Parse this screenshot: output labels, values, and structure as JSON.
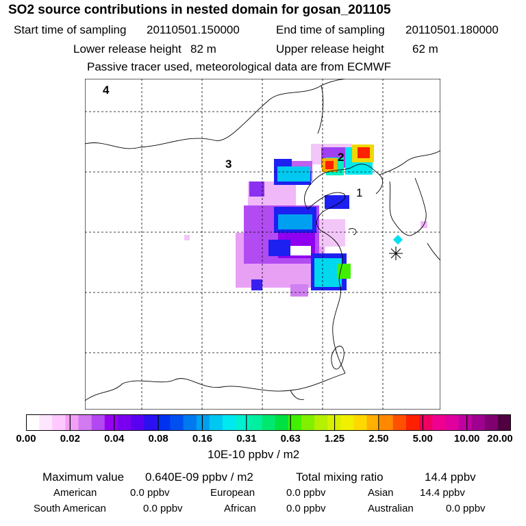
{
  "header": {
    "title": "SO2 source contributions in nested domain for gosan_201105",
    "start_time_label": "Start time of sampling",
    "start_time": "20110501.150000",
    "end_time_label": "End time of sampling",
    "end_time": "20110501.180000",
    "lower_height_label": "Lower release height",
    "lower_height": "82 m",
    "upper_height_label": "Upper release height",
    "upper_height": "62 m",
    "note": "Passive tracer used, meteorological data are from ECMWF"
  },
  "map": {
    "region_labels": [
      "1",
      "2",
      "3",
      "4"
    ],
    "receptor_marker": "asterisk-marker"
  },
  "colorbar": {
    "tick_labels": [
      "0.00",
      "0.02",
      "0.04",
      "0.08",
      "0.16",
      "0.31",
      "0.63",
      "1.25",
      "2.50",
      "5.00",
      "10.00",
      "20.00"
    ],
    "colors": [
      "#ffffff",
      "#ffe6ff",
      "#ffc8ff",
      "#f2a0f5",
      "#d27af0",
      "#b448f0",
      "#9600f0",
      "#7a00f0",
      "#5a00f0",
      "#2c10f0",
      "#0030f0",
      "#0050f0",
      "#0078f0",
      "#00a0f0",
      "#00c8f0",
      "#00e8f0",
      "#00f0d0",
      "#00f0a0",
      "#00e870",
      "#00e040",
      "#40f000",
      "#80f000",
      "#b4f000",
      "#d8f000",
      "#f0f000",
      "#ffd800",
      "#ffb000",
      "#ff8800",
      "#ff5000",
      "#ff2000",
      "#f00060",
      "#f00090",
      "#e000a0",
      "#c000a0",
      "#a00090",
      "#800070",
      "#500040"
    ],
    "unit": "10E-10 ppbv / m2"
  },
  "stats": {
    "max_label": "Maximum value",
    "max_value": "0.640E-09 ppbv / m2",
    "total_label": "Total mixing ratio",
    "total_value": "14.4 ppbv",
    "regions": [
      {
        "name": "American",
        "value": "0.0 ppbv"
      },
      {
        "name": "European",
        "value": "0.0 ppbv"
      },
      {
        "name": "Asian",
        "value": "14.4 ppbv"
      },
      {
        "name": "South American",
        "value": "0.0 ppbv"
      },
      {
        "name": "African",
        "value": "0.0 ppbv"
      },
      {
        "name": "Australian",
        "value": "0.0 ppbv"
      }
    ]
  }
}
